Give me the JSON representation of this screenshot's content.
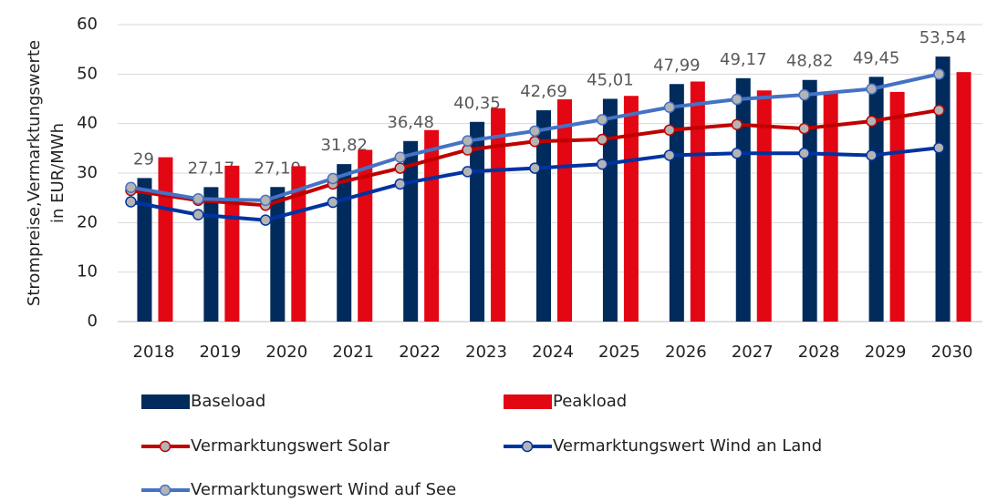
{
  "chart_data": {
    "type": "bar_line",
    "y_label": [
      "Strompreise,Vermarktungswerte",
      "in EUR/MWh"
    ],
    "categories": [
      "2018",
      "2019",
      "2020",
      "2021",
      "2022",
      "2023",
      "2024",
      "2025",
      "2026",
      "2027",
      "2028",
      "2029",
      "2030"
    ],
    "ylim": [
      0,
      60
    ],
    "yticks": [
      0,
      10,
      20,
      30,
      40,
      50,
      60
    ],
    "grid": true,
    "series": [
      {
        "name": "Baseload",
        "kind": "bar",
        "color": "#002b5c",
        "values": [
          29,
          27.17,
          27.19,
          31.82,
          36.48,
          40.35,
          42.69,
          45.01,
          47.99,
          49.17,
          48.82,
          49.45,
          53.54
        ],
        "value_labels": [
          "29",
          "27,17",
          "27,19",
          "31,82",
          "36,48",
          "40,35",
          "42,69",
          "45,01",
          "47,99",
          "49,17",
          "48,82",
          "49,45",
          "53,54"
        ]
      },
      {
        "name": "Peakload",
        "kind": "bar",
        "color": "#e30613",
        "values": [
          33.2,
          31.5,
          31.4,
          34.7,
          38.7,
          43.1,
          44.9,
          45.6,
          48.5,
          46.7,
          46.3,
          46.4,
          50.4
        ]
      },
      {
        "name": "Vermarktungswert Solar",
        "kind": "line",
        "color": "#c00000",
        "values": [
          26.5,
          24.5,
          23.5,
          27.8,
          31.0,
          34.7,
          36.4,
          36.8,
          38.7,
          39.8,
          39.0,
          40.5,
          42.7
        ]
      },
      {
        "name": "Vermarktungswert Wind an Land",
        "kind": "line",
        "color": "#0033a0",
        "values": [
          24.2,
          21.6,
          20.5,
          24.1,
          27.8,
          30.3,
          31.0,
          31.8,
          33.6,
          34.0,
          34.0,
          33.6,
          35.1
        ]
      },
      {
        "name": "Vermarktungswert Wind auf See",
        "kind": "line",
        "color": "#4472c4",
        "values": [
          27.1,
          24.8,
          24.5,
          28.9,
          33.2,
          36.5,
          38.5,
          40.8,
          43.3,
          44.9,
          45.8,
          47.0,
          50.0
        ]
      }
    ]
  }
}
